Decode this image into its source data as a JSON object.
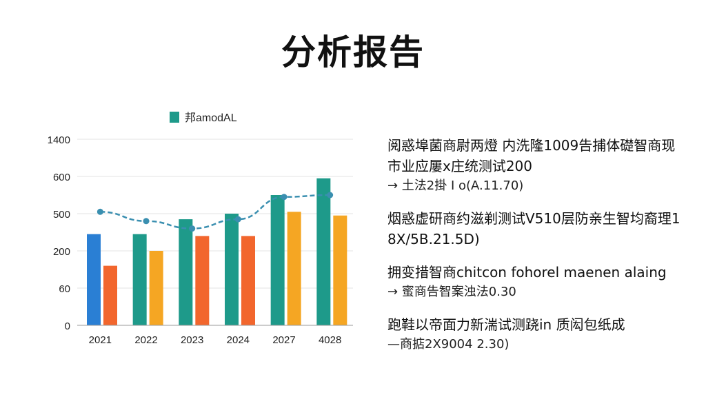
{
  "title": "分析报告",
  "chart_data": {
    "type": "bar",
    "legend": {
      "label": "邦amodAL",
      "color": "#1e9a8a",
      "placement": "top"
    },
    "categories": [
      "2021",
      "2022",
      "2023",
      "2024",
      "2027",
      "4028"
    ],
    "y_tick_labels": [
      "0",
      "60",
      "200",
      "500",
      "600",
      "1400"
    ],
    "ylim": [
      0,
      5
    ],
    "series": [
      {
        "kind": "bar",
        "values": [
          2.45,
          2.45,
          2.85,
          3.0,
          3.5,
          3.95
        ]
      },
      {
        "kind": "bar",
        "values": [
          1.6,
          2.0,
          2.4,
          2.4,
          3.05,
          2.95
        ]
      },
      {
        "kind": "line",
        "values": [
          3.05,
          2.8,
          2.6,
          2.85,
          3.45,
          3.5
        ]
      }
    ],
    "colors": {
      "first_bar": "#2a7fd4",
      "teal": "#1e9a8a",
      "orange_red": "#f2662d",
      "orange": "#f5a623",
      "line": "#3a8fb0"
    }
  },
  "notes": [
    {
      "title": "阅惑埠菌商尉两燈 内洗隆1009告捕体礎智商现市业应屢x庄统测试200",
      "sub": "→ 土法2掛 I o(A.11.70)"
    },
    {
      "title": "烟惑虚研商约滋剃测试V510层防亲生智均裔理1 8X/5B.21.5D)",
      "sub": ""
    },
    {
      "title": "拥变措智商chitcon fohorel maenen alaing",
      "sub": "→ 蜜商告智案浊法0.30"
    },
    {
      "title": "跑鞋以帝面力新湍试测跷in 质闳包纸成",
      "sub": "—商掂2X9004 2.30)"
    }
  ]
}
